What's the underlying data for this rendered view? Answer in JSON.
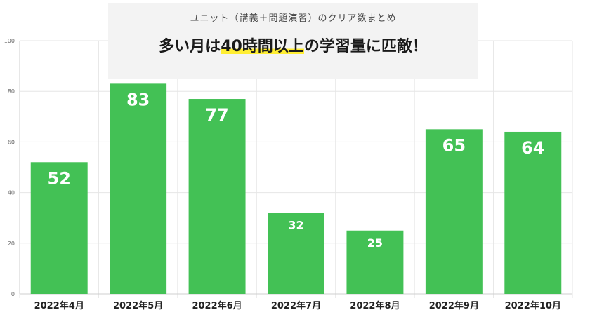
{
  "title_box": {
    "subtitle": "ユニット（講義＋問題演習）のクリア数まとめ",
    "title_before": "多い月は",
    "title_highlight": "40時間以上",
    "title_after": "の学習量に匹敵！"
  },
  "colors": {
    "bar": "#43c155",
    "highlight": "#ffee33",
    "grid": "#e6e6e6",
    "axis_text": "#666666",
    "category_text": "#222222"
  },
  "chart_data": {
    "type": "bar",
    "categories": [
      "2022年4月",
      "2022年5月",
      "2022年6月",
      "2022年7月",
      "2022年8月",
      "2022年9月",
      "2022年10月"
    ],
    "values": [
      52,
      83,
      77,
      32,
      25,
      65,
      64
    ],
    "data_labels": [
      "52",
      "83",
      "77",
      "32",
      "25",
      "65",
      "64"
    ],
    "ylim": [
      0,
      100
    ],
    "yticks": [
      0,
      20,
      40,
      60,
      80,
      100
    ],
    "ytick_labels": [
      "0",
      "20",
      "40",
      "60",
      "80",
      "100"
    ],
    "grid": true,
    "legend": "none"
  }
}
